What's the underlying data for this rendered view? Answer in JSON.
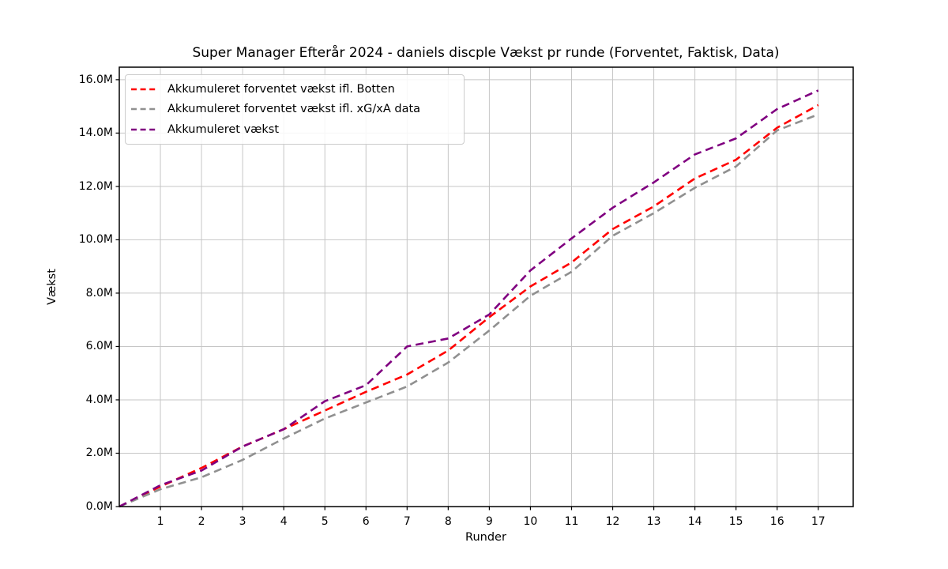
{
  "chart_data": {
    "type": "line",
    "title": "Super Manager Efterår 2024 - daniels discple Vækst pr runde (Forventet, Faktisk, Data)",
    "xlabel": "Runder",
    "ylabel": "Vækst",
    "x": [
      0,
      1,
      2,
      3,
      4,
      5,
      6,
      7,
      8,
      9,
      10,
      11,
      12,
      13,
      14,
      15,
      16,
      17
    ],
    "x_tick_labels": [
      "1",
      "2",
      "3",
      "4",
      "5",
      "6",
      "7",
      "8",
      "9",
      "10",
      "11",
      "12",
      "13",
      "14",
      "15",
      "16",
      "17"
    ],
    "x_tick_values": [
      1,
      2,
      3,
      4,
      5,
      6,
      7,
      8,
      9,
      10,
      11,
      12,
      13,
      14,
      15,
      16,
      17
    ],
    "y_tick_labels": [
      "0.0M",
      "2.0M",
      "4.0M",
      "6.0M",
      "8.0M",
      "10.0M",
      "12.0M",
      "14.0M",
      "16.0M"
    ],
    "y_tick_values_millions": [
      0,
      2,
      4,
      6,
      8,
      10,
      12,
      14,
      16
    ],
    "xlim": [
      0,
      17.85
    ],
    "ylim_millions": [
      0,
      16.47
    ],
    "grid": true,
    "grid_color": "#c6c6c6",
    "spine_color": "#000000",
    "line_style": "dashed",
    "legend_position": "upper left",
    "series": [
      {
        "name": "Akkumuleret forventet vækst ifl. Botten",
        "color": "#ff0000",
        "values_millions": [
          0,
          0.75,
          1.45,
          2.25,
          2.9,
          3.6,
          4.3,
          4.95,
          5.85,
          7.1,
          8.25,
          9.15,
          10.4,
          11.25,
          12.3,
          13.0,
          14.2,
          15.05
        ]
      },
      {
        "name": "Akkumuleret forventet vækst ifl. xG/xA data",
        "color": "#909090",
        "values_millions": [
          0,
          0.65,
          1.1,
          1.75,
          2.55,
          3.3,
          3.9,
          4.5,
          5.4,
          6.6,
          7.9,
          8.8,
          10.15,
          11.0,
          11.95,
          12.75,
          14.1,
          14.7
        ]
      },
      {
        "name": "Akkumuleret vækst",
        "color": "#800080",
        "values_millions": [
          0,
          0.8,
          1.35,
          2.25,
          2.9,
          3.95,
          4.55,
          6.0,
          6.3,
          7.2,
          8.85,
          10.05,
          11.2,
          12.15,
          13.2,
          13.8,
          14.9,
          15.6
        ]
      }
    ]
  }
}
